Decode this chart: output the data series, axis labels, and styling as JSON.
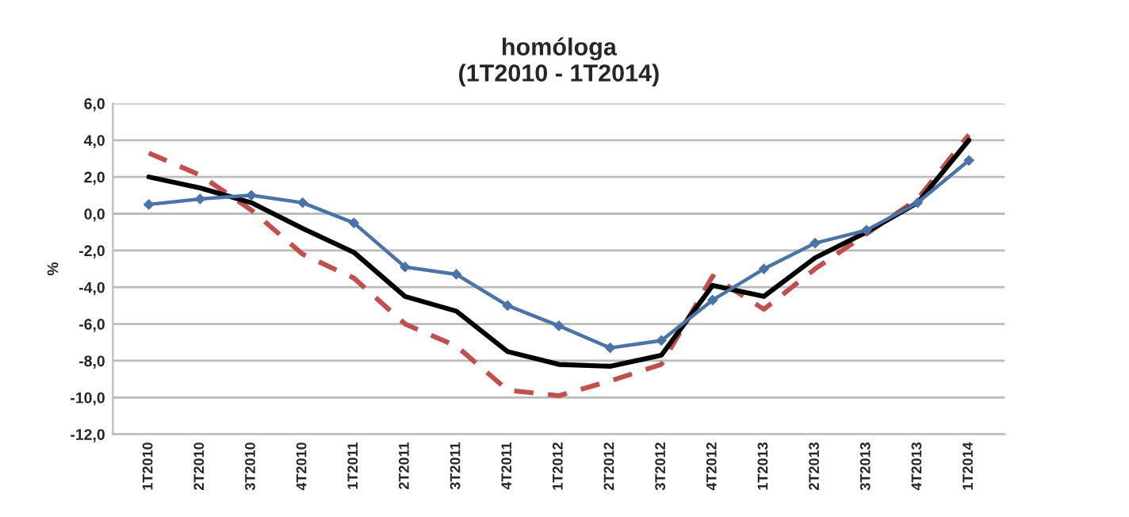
{
  "chart_data": {
    "type": "line",
    "title": "homóloga\n(1T2010 - 1T2014)",
    "ylabel": "%",
    "categories": [
      "1T2010",
      "2T2010",
      "3T2010",
      "4T2010",
      "1T2011",
      "2T2011",
      "3T2011",
      "4T2011",
      "1T2012",
      "2T2012",
      "3T2012",
      "4T2012",
      "1T2013",
      "2T2013",
      "3T2013",
      "4T2013",
      "1T2014"
    ],
    "series": [
      {
        "color": "#4a73a8",
        "marker": "diamond",
        "line_style": "solid",
        "values": [
          0.5,
          0.8,
          1.0,
          0.6,
          -0.5,
          -2.9,
          -3.3,
          -5.0,
          -6.1,
          -7.3,
          -6.9,
          -4.7,
          -3.0,
          -1.6,
          -0.9,
          0.6,
          2.9
        ]
      },
      {
        "color": "#000000",
        "marker": "none",
        "line_style": "solid",
        "values": [
          2.0,
          1.4,
          0.6,
          -0.8,
          -2.1,
          -4.5,
          -5.3,
          -7.5,
          -8.2,
          -8.3,
          -7.7,
          -3.9,
          -4.5,
          -2.4,
          -1.0,
          0.6,
          4.0
        ]
      },
      {
        "color": "#c0504d",
        "marker": "none",
        "line_style": "dashed",
        "values": [
          3.3,
          2.1,
          0.2,
          -2.2,
          -3.5,
          -6.0,
          -7.2,
          -9.6,
          -9.9,
          -9.1,
          -8.2,
          -3.4,
          -5.2,
          -3.0,
          -1.1,
          0.8,
          4.3
        ]
      }
    ],
    "ylim": [
      -12,
      6
    ],
    "yticks": [
      {
        "value": -12,
        "label": "-12,0"
      },
      {
        "value": -10,
        "label": "-10,0"
      },
      {
        "value": -8,
        "label": "-8,0"
      },
      {
        "value": -6,
        "label": "-6,0"
      },
      {
        "value": -4,
        "label": "-4,0"
      },
      {
        "value": -2,
        "label": "-2,0"
      },
      {
        "value": 0,
        "label": "0,0"
      },
      {
        "value": 2,
        "label": "2,0"
      },
      {
        "value": 4,
        "label": "4,0"
      },
      {
        "value": 6,
        "label": "6,0"
      }
    ],
    "grid": "y",
    "legend": false
  }
}
